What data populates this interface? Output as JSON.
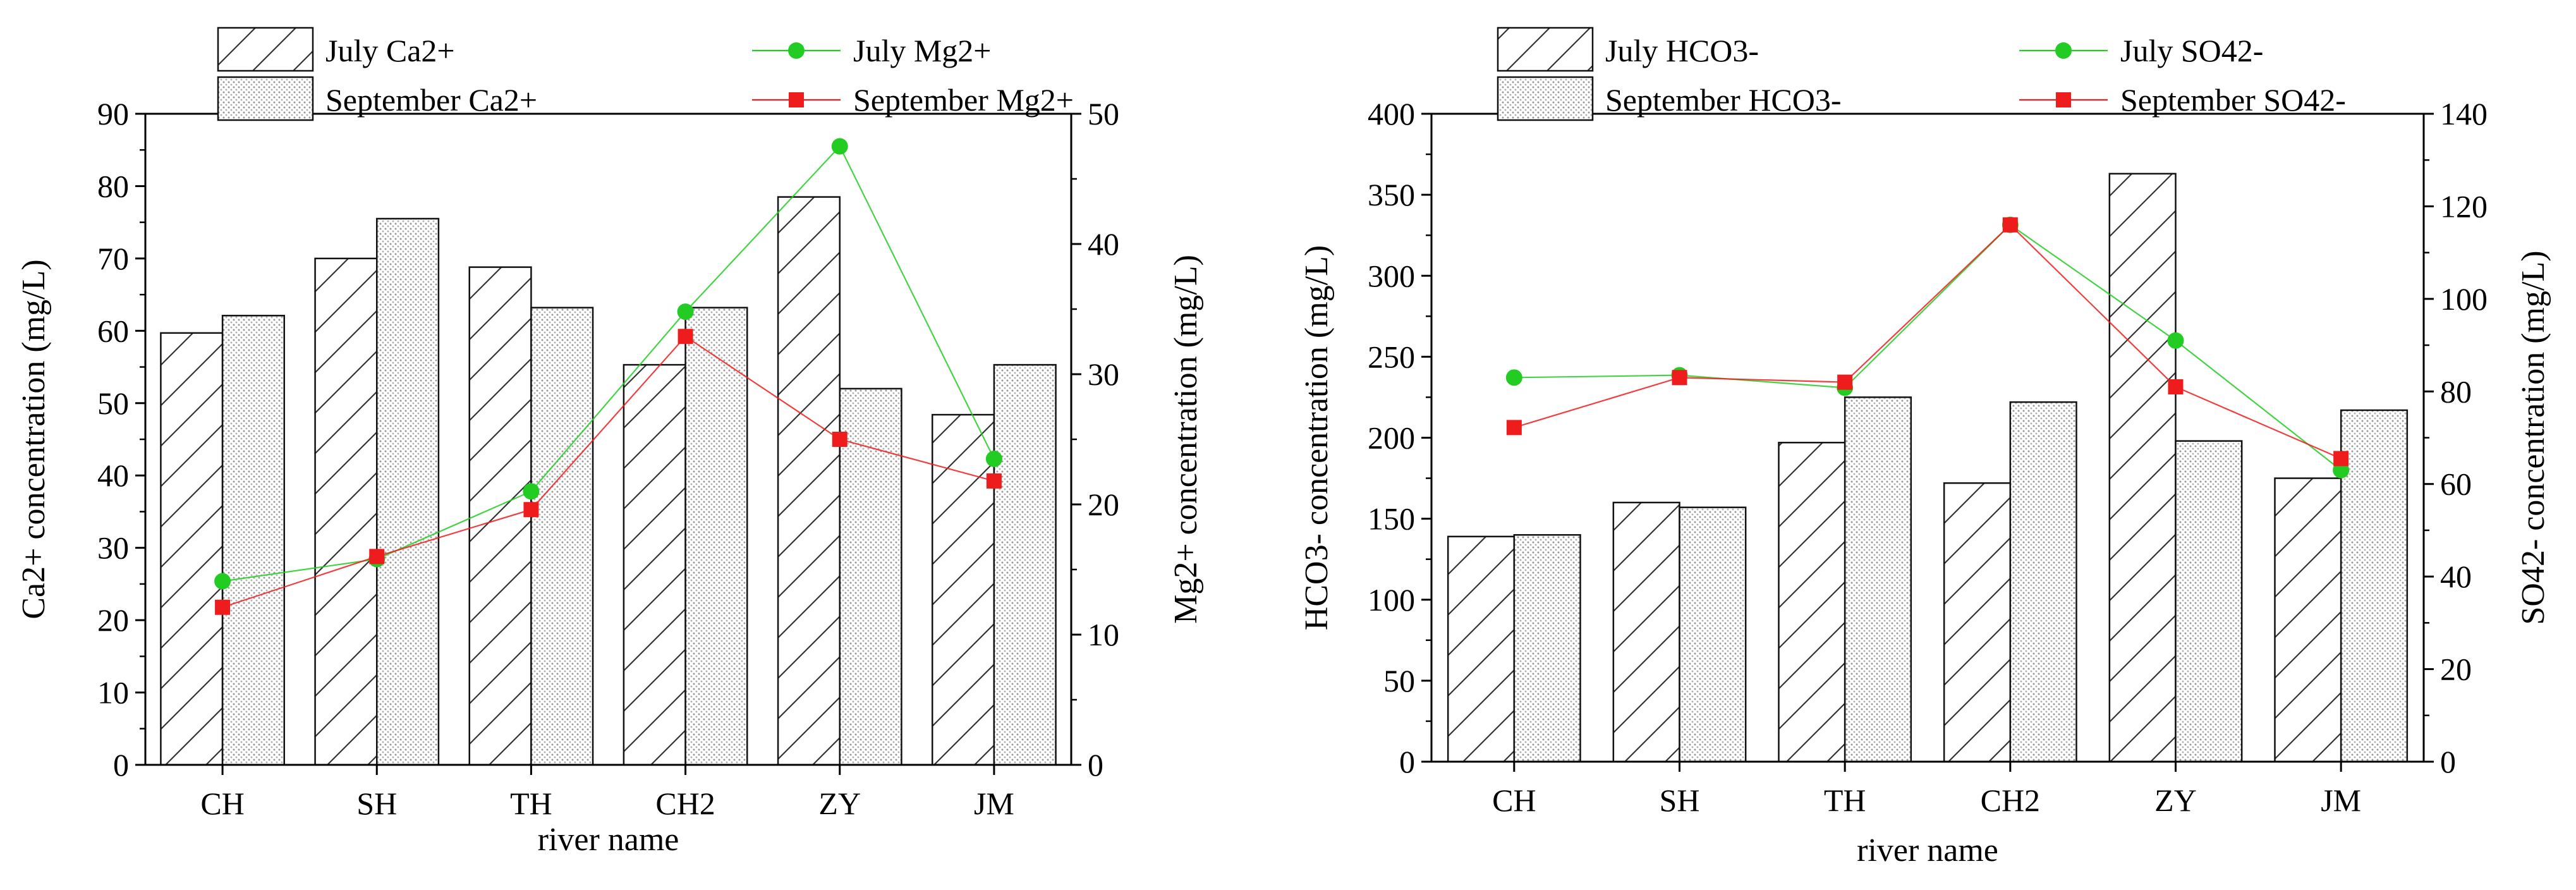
{
  "chart_data": [
    {
      "type": "bar",
      "categories": [
        "CH",
        "SH",
        "TH",
        "CH2",
        "ZY",
        "JM"
      ],
      "xlabel": "river name",
      "ylabel": "Ca2+ concentration (mg/L)",
      "y2label": "Mg2+ concentration (mg/L)",
      "ylim": [
        0,
        90
      ],
      "yticks": [
        0,
        10,
        20,
        30,
        40,
        50,
        60,
        70,
        80,
        90
      ],
      "y2lim": [
        0,
        50
      ],
      "y2ticks": [
        0,
        10,
        20,
        30,
        40,
        50
      ],
      "series": [
        {
          "name": "July Ca2+",
          "kind": "bar",
          "axis": "left",
          "pattern": "hatch",
          "values": [
            59.7,
            70.0,
            68.8,
            55.3,
            78.5,
            48.4
          ]
        },
        {
          "name": "September Ca2+",
          "kind": "bar",
          "axis": "left",
          "pattern": "dots",
          "values": [
            62.1,
            75.5,
            63.2,
            63.2,
            52.0,
            55.3
          ]
        },
        {
          "name": "July Mg2+",
          "kind": "line",
          "axis": "right",
          "marker": "circle",
          "color": "#22cc22",
          "values": [
            14.1,
            15.8,
            21.0,
            34.8,
            47.5,
            23.5
          ]
        },
        {
          "name": "September Mg2+",
          "kind": "line",
          "axis": "right",
          "marker": "square",
          "color": "#ee1c1c",
          "values": [
            12.1,
            16.0,
            19.6,
            32.9,
            25.0,
            21.8
          ]
        }
      ],
      "legend_position": "top"
    },
    {
      "type": "bar",
      "categories": [
        "CH",
        "SH",
        "TH",
        "CH2",
        "ZY",
        "JM"
      ],
      "xlabel": "river name",
      "ylabel": "HCO3- concentration (mg/L)",
      "y2label": "SO42- concentration (mg/L)",
      "ylim": [
        0,
        400
      ],
      "yticks": [
        0,
        50,
        100,
        150,
        200,
        250,
        300,
        350,
        400
      ],
      "y2lim": [
        0,
        140
      ],
      "y2ticks": [
        0,
        20,
        40,
        60,
        80,
        100,
        120,
        140
      ],
      "series": [
        {
          "name": "July HCO3-",
          "kind": "bar",
          "axis": "left",
          "pattern": "hatch",
          "values": [
            139,
            160,
            197,
            172,
            363,
            175
          ]
        },
        {
          "name": "September HCO3-",
          "kind": "bar",
          "axis": "left",
          "pattern": "dots",
          "values": [
            140,
            157,
            225,
            222,
            198,
            217
          ]
        },
        {
          "name": "July SO42-",
          "kind": "line",
          "axis": "right",
          "marker": "circle",
          "color": "#22cc22",
          "values": [
            83.0,
            83.5,
            80.8,
            116.0,
            91.0,
            63.0
          ]
        },
        {
          "name": "September SO42-",
          "kind": "line",
          "axis": "right",
          "marker": "square",
          "color": "#ee1c1c",
          "values": [
            72.2,
            83.0,
            82.0,
            116.0,
            81.0,
            65.5
          ]
        }
      ],
      "legend_position": "top"
    }
  ]
}
